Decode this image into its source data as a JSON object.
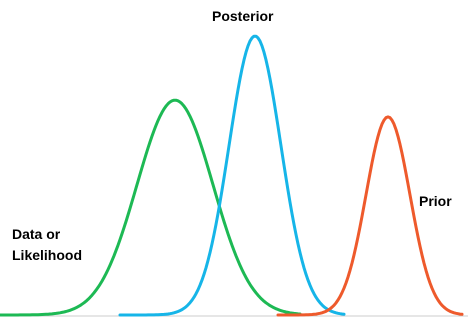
{
  "chart_data": {
    "type": "line",
    "title": "",
    "xlabel": "",
    "ylabel": "",
    "grid": false,
    "legend": "none",
    "xlim": [
      0,
      468
    ],
    "ylim": [
      0,
      1
    ],
    "series": [
      {
        "name_lines": [
          "Data or",
          "Likelihood"
        ],
        "color": "#1db954",
        "shape": "normal",
        "x_range": [
          0,
          300
        ],
        "mean": 175,
        "sd": 38,
        "peak": 0.77
      },
      {
        "name": "Posterior",
        "color": "#16b5e8",
        "shape": "normal",
        "x_range": [
          120,
          345
        ],
        "mean": 255,
        "sd": 26,
        "peak": 1.0
      },
      {
        "name": "Prior",
        "color": "#ee5a2c",
        "shape": "normal",
        "x_range": [
          278,
          462
        ],
        "mean": 388,
        "sd": 22,
        "peak": 0.71
      }
    ]
  },
  "labels": {
    "posterior": "Posterior",
    "prior": "Prior",
    "likelihood_line1": "Data or",
    "likelihood_line2": "Likelihood"
  }
}
